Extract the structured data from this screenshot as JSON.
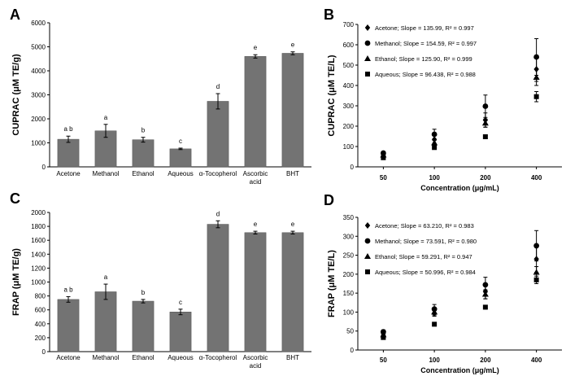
{
  "chart_data": [
    {
      "panel": "A",
      "type": "bar",
      "ylabel": "CUPRAC (μM TE/g)",
      "ylim": [
        0,
        6000
      ],
      "yticks": [
        "0",
        "1000",
        "2000",
        "3000",
        "4000",
        "5000",
        "6000"
      ],
      "categories": [
        "Acetone",
        "Methanol",
        "Ethanol",
        "Aqueous",
        "α-Tocopherol",
        "Ascorbic acid",
        "BHT"
      ],
      "cat_lines": [
        [
          "Acetone"
        ],
        [
          "Methanol"
        ],
        [
          "Ethanol"
        ],
        [
          "Aqueous"
        ],
        [
          "α-Tocopherol"
        ],
        [
          "Ascorbic",
          "acid"
        ],
        [
          "BHT"
        ]
      ],
      "values": [
        1150,
        1500,
        1130,
        750,
        2730,
        4600,
        4730
      ],
      "errors": [
        130,
        270,
        100,
        30,
        320,
        70,
        60
      ],
      "letters": [
        "a b",
        "a",
        "b",
        "c",
        "d",
        "e",
        "e"
      ],
      "bar_color": "#737373"
    },
    {
      "panel": "B",
      "type": "scatter",
      "ylabel": "CUPRAC (μM TE/L)",
      "xlabel": "Concentration (μg/mL)",
      "ylim": [
        0,
        700
      ],
      "yticks": [
        "0",
        "100",
        "200",
        "300",
        "400",
        "500",
        "600",
        "700"
      ],
      "categories": [
        "50",
        "100",
        "200",
        "400"
      ],
      "legend": [
        {
          "marker": "diamond",
          "label": "Acetone; Slope = 135.99, R² = 0.997"
        },
        {
          "marker": "circle",
          "label": "Methanol; Slope = 154.59, R² = 0.997"
        },
        {
          "marker": "triangle",
          "label": "Ethanol; Slope = 125.90, R² = 0.999"
        },
        {
          "marker": "square",
          "label": "Aqueous; Slope = 96.438, R² = 0.988"
        }
      ],
      "series": [
        {
          "name": "Acetone",
          "marker": "diamond",
          "values": [
            62,
            135,
            230,
            480
          ],
          "errors": [
            5,
            20,
            35,
            60
          ]
        },
        {
          "name": "Methanol",
          "marker": "circle",
          "values": [
            68,
            160,
            298,
            540
          ],
          "errors": [
            5,
            25,
            55,
            90
          ]
        },
        {
          "name": "Ethanol",
          "marker": "triangle",
          "values": [
            58,
            118,
            215,
            440
          ],
          "errors": [
            4,
            12,
            20,
            40
          ]
        },
        {
          "name": "Aqueous",
          "marker": "square",
          "values": [
            45,
            95,
            148,
            345
          ],
          "errors": [
            3,
            8,
            10,
            25
          ]
        }
      ]
    },
    {
      "panel": "C",
      "type": "bar",
      "ylabel": "FRAP (μM TE/g)",
      "ylim": [
        0,
        2000
      ],
      "yticks": [
        "0",
        "200",
        "400",
        "600",
        "800",
        "1000",
        "1200",
        "1400",
        "1600",
        "1800",
        "2000"
      ],
      "categories": [
        "Acetone",
        "Methanol",
        "Ethanol",
        "Aqueous",
        "α-Tocopherol",
        "Ascorbic acid",
        "BHT"
      ],
      "cat_lines": [
        [
          "Acetone"
        ],
        [
          "Methanol"
        ],
        [
          "Ethanol"
        ],
        [
          "Aqueous"
        ],
        [
          "α-Tocopherol"
        ],
        [
          "Ascorbic",
          "acid"
        ],
        [
          "BHT"
        ]
      ],
      "values": [
        750,
        860,
        725,
        570,
        1830,
        1710,
        1710
      ],
      "errors": [
        40,
        110,
        25,
        40,
        50,
        20,
        20
      ],
      "letters": [
        "a b",
        "a",
        "b",
        "c",
        "d",
        "e",
        "e"
      ],
      "bar_color": "#737373"
    },
    {
      "panel": "D",
      "type": "scatter",
      "ylabel": "FRAP (μM TE/L)",
      "xlabel": "Concentration (μg/mL)",
      "ylim": [
        0,
        350
      ],
      "yticks": [
        "0",
        "50",
        "100",
        "150",
        "200",
        "250",
        "300",
        "350"
      ],
      "categories": [
        "50",
        "100",
        "200",
        "400"
      ],
      "legend": [
        {
          "marker": "diamond",
          "label": "Acetone; Slope = 63.210, R² = 0.983"
        },
        {
          "marker": "circle",
          "label": "Methanol; Slope = 73.591, R² = 0.980"
        },
        {
          "marker": "triangle",
          "label": "Ethanol; Slope = 59.291, R² = 0.947"
        },
        {
          "marker": "square",
          "label": "Aqueous; Slope = 50.996, R² = 0.984"
        }
      ],
      "series": [
        {
          "name": "Acetone",
          "marker": "diamond",
          "values": [
            44,
            97,
            155,
            240
          ],
          "errors": [
            4,
            8,
            20,
            35
          ]
        },
        {
          "name": "Methanol",
          "marker": "circle",
          "values": [
            48,
            108,
            172,
            275
          ],
          "errors": [
            5,
            12,
            20,
            40
          ]
        },
        {
          "name": "Ethanol",
          "marker": "triangle",
          "values": [
            40,
            100,
            147,
            205
          ],
          "errors": [
            3,
            8,
            12,
            15
          ]
        },
        {
          "name": "Aqueous",
          "marker": "square",
          "values": [
            33,
            68,
            113,
            185
          ],
          "errors": [
            3,
            4,
            5,
            10
          ]
        }
      ]
    }
  ]
}
